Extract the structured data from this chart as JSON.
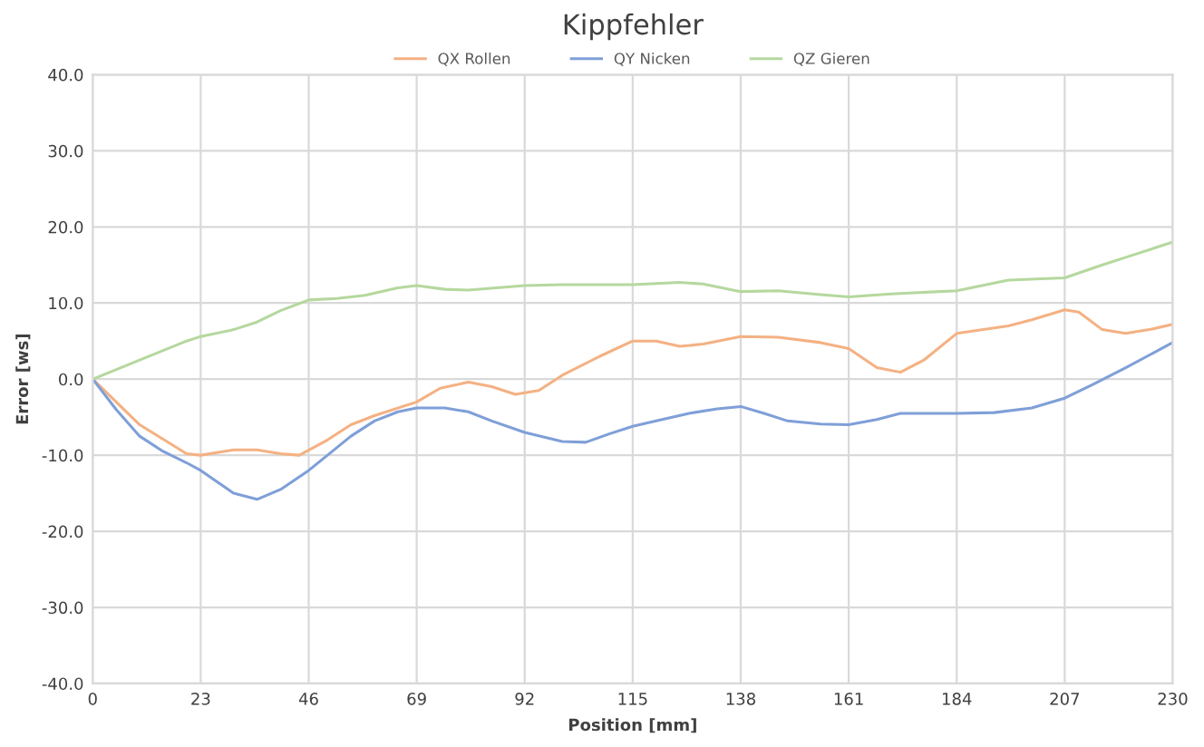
{
  "chart_data": {
    "type": "line",
    "title": "Kippfehler",
    "xlabel": "Position [mm]",
    "ylabel": "Error [ws]",
    "xlim": [
      0,
      230
    ],
    "xticks": [
      0,
      23,
      46,
      69,
      92,
      115,
      138,
      161,
      184,
      207,
      230
    ],
    "ylim": [
      -40,
      40
    ],
    "yticks": [
      {
        "value": -40,
        "label": "-40.0"
      },
      {
        "value": -30,
        "label": "-30.0"
      },
      {
        "value": -20,
        "label": "-20.0"
      },
      {
        "value": -10,
        "label": "-10.0"
      },
      {
        "value": 0,
        "label": "0.0"
      },
      {
        "value": 10,
        "label": "10.0"
      },
      {
        "value": 20,
        "label": "20.0"
      },
      {
        "value": 30,
        "label": "30.0"
      },
      {
        "value": 40,
        "label": "40.0"
      }
    ],
    "grid": true,
    "legend": "top",
    "marker": "none",
    "line_style": "solid",
    "series": [
      {
        "name": "QX Rollen",
        "color": "#f4b183",
        "x": [
          0,
          10,
          20,
          23,
          30,
          35,
          40,
          44,
          50,
          55,
          60,
          69,
          74,
          80,
          85,
          90,
          95,
          100,
          108,
          115,
          120,
          125,
          130,
          138,
          146,
          155,
          161,
          167,
          172,
          177,
          184,
          195,
          200,
          207,
          210,
          215,
          220,
          225,
          230
        ],
        "values": [
          0,
          -6,
          -9.8,
          -10,
          -9.3,
          -9.3,
          -9.8,
          -10,
          -8,
          -6,
          -4.8,
          -3,
          -1.2,
          -0.4,
          -1,
          -2,
          -1.5,
          0.5,
          3,
          5,
          5,
          4.3,
          4.6,
          5.6,
          5.5,
          4.8,
          4,
          1.5,
          0.9,
          2.5,
          6,
          7,
          7.8,
          9.1,
          8.8,
          6.5,
          6,
          6.5,
          7.2
        ]
      },
      {
        "name": "QY Nicken",
        "color": "#7f9fd8",
        "x": [
          0,
          5,
          10,
          15,
          20,
          23,
          30,
          35,
          40,
          46,
          50,
          55,
          60,
          65,
          69,
          75,
          80,
          85,
          92,
          100,
          105,
          110,
          115,
          120,
          127,
          133,
          138,
          143,
          148,
          155,
          161,
          167,
          172,
          184,
          192,
          200,
          207,
          213,
          220,
          230
        ],
        "values": [
          0,
          -4,
          -7.5,
          -9.5,
          -11,
          -12,
          -15,
          -15.8,
          -14.5,
          -12,
          -10,
          -7.5,
          -5.5,
          -4.3,
          -3.8,
          -3.8,
          -4.3,
          -5.5,
          -7,
          -8.2,
          -8.3,
          -7.2,
          -6.2,
          -5.5,
          -4.5,
          -3.9,
          -3.6,
          -4.5,
          -5.5,
          -5.9,
          -6,
          -5.3,
          -4.5,
          -4.5,
          -4.4,
          -3.8,
          -2.5,
          -0.7,
          1.5,
          4.8
        ]
      },
      {
        "name": "QZ Gieren",
        "color": "#b5d89e",
        "x": [
          0,
          10,
          20,
          23,
          30,
          35,
          40,
          46,
          52,
          58,
          65,
          69,
          75,
          80,
          92,
          100,
          115,
          125,
          130,
          138,
          146,
          155,
          161,
          170,
          184,
          195,
          207,
          215,
          220,
          230
        ],
        "values": [
          0,
          2.5,
          5,
          5.6,
          6.5,
          7.5,
          9,
          10.4,
          10.6,
          11,
          12,
          12.3,
          11.8,
          11.7,
          12.3,
          12.4,
          12.4,
          12.7,
          12.5,
          11.5,
          11.6,
          11.1,
          10.8,
          11.2,
          11.6,
          13,
          13.3,
          15,
          16,
          18
        ]
      }
    ]
  }
}
